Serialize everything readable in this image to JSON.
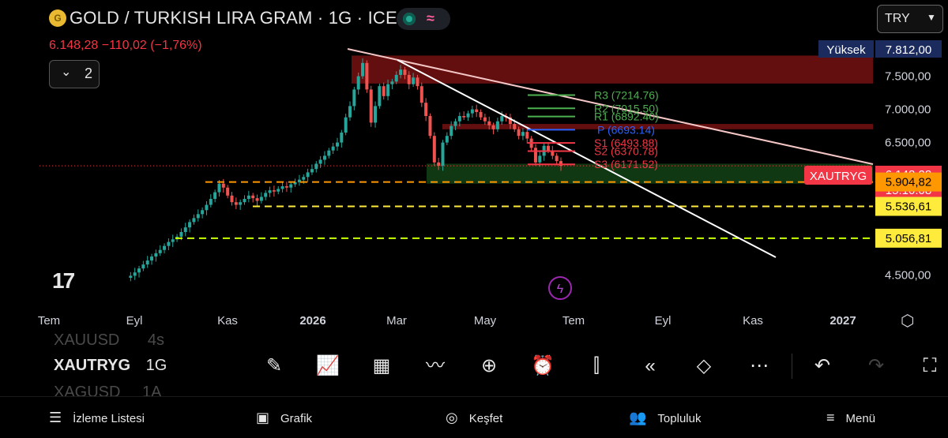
{
  "header": {
    "title": "GOLD / TURKISH LIRA GRAM · 1G · ICE",
    "price_line": "6.148,28  −110,02 (−1,76%)",
    "collapse_count": "2",
    "currency_select": "TRY",
    "logo_text": "17"
  },
  "chart_data": {
    "type": "candlestick",
    "symbol": "XAUTRYG",
    "last_price": 6148.28,
    "change": -110.02,
    "change_pct": -1.76,
    "time_labels": [
      "Tem",
      "Eyl",
      "Kas",
      "2026",
      "Mar",
      "May",
      "Tem",
      "Eyl",
      "Kas",
      "2027"
    ],
    "price_ticks": [
      "7.500,00",
      "7.000,00",
      "6.500,00",
      "4.500,00"
    ],
    "ylim": [
      4450,
      8000
    ],
    "pivots": [
      {
        "label": "R3 (7214.76)",
        "value": 7214.76,
        "color": "#4caf50"
      },
      {
        "label": "R2 (7015.50)",
        "value": 7015.5,
        "color": "#4caf50"
      },
      {
        "label": "R1 (6892.40)",
        "value": 6892.4,
        "color": "#4caf50"
      },
      {
        "label": "P (6693.14)",
        "value": 6693.14,
        "color": "#2962ff"
      },
      {
        "label": "S1 (6493.88)",
        "value": 6493.88,
        "color": "#f23645"
      },
      {
        "label": "S2 (6370.78)",
        "value": 6370.78,
        "color": "#f23645"
      },
      {
        "label": "S3 (6171.52)",
        "value": 6171.52,
        "color": "#f23645"
      }
    ],
    "price_badges": [
      {
        "label": "Yüksek",
        "value": "7.812,00",
        "bg": "#1c2b5e",
        "fg": "#ffffff"
      },
      {
        "label": "XAUTRYG",
        "value": "6.148,28",
        "sub": "15:10:08",
        "bg": "#f23645",
        "fg": "#ffffff"
      },
      {
        "value": "5.904,82",
        "bg": "#ff9800",
        "fg": "#000000"
      },
      {
        "value": "5.536,61",
        "bg": "#ffeb3b",
        "fg": "#000000"
      },
      {
        "value": "5.056,81",
        "bg": "#ffeb3b",
        "fg": "#000000"
      }
    ],
    "horizontal_levels": [
      5904.82,
      5536.61,
      5056.81
    ],
    "resistance_zones": [
      [
        7390,
        7812
      ],
      [
        6700,
        6780
      ]
    ],
    "support_zones": [
      [
        5880,
        6180
      ]
    ],
    "closes": [
      4460,
      4490,
      4540,
      4600,
      4660,
      4720,
      4780,
      4830,
      4880,
      4940,
      5000,
      5040,
      5080,
      5150,
      5220,
      5300,
      5360,
      5420,
      5480,
      5560,
      5650,
      5750,
      5880,
      5820,
      5700,
      5600,
      5560,
      5600,
      5650,
      5700,
      5660,
      5620,
      5680,
      5740,
      5780,
      5760,
      5800,
      5840,
      5820,
      5870,
      5900,
      5940,
      5980,
      6050,
      6100,
      6180,
      6240,
      6300,
      6380,
      6440,
      6500,
      6650,
      6880,
      7050,
      7300,
      7500,
      7700,
      7300,
      6800,
      7050,
      7350,
      7200,
      7380,
      7420,
      7520,
      7600,
      7520,
      7380,
      7480,
      7350,
      7100,
      6900,
      6600,
      6200,
      6150,
      6500,
      6600,
      6750,
      6820,
      6900,
      6880,
      6940,
      7000,
      6960,
      6880,
      6820,
      6760,
      6700,
      6820,
      6900,
      6880,
      6780,
      6700,
      6600,
      6660,
      6560,
      6420,
      6200,
      6300,
      6450,
      6380,
      6300,
      6220,
      6148
    ]
  },
  "watchlist": {
    "prev": "XAUUSD",
    "prev_tf": "4s",
    "current": "XAUTRYG",
    "current_tf": "1G",
    "next": "XAGUSD",
    "next_tf": "1A"
  },
  "toolbar": [
    "pen-icon",
    "indicators-icon",
    "templates-icon",
    "compare-icon",
    "add-icon",
    "alarm-icon",
    "candle-type-icon",
    "replay-icon",
    "layers-icon",
    "more-icon",
    "undo-icon",
    "redo-icon",
    "fullscreen-icon"
  ],
  "bottom_nav": [
    {
      "label": "İzleme Listesi",
      "icon": "watchlist-icon"
    },
    {
      "label": "Grafik",
      "icon": "chart-icon"
    },
    {
      "label": "Keşfet",
      "icon": "explore-icon"
    },
    {
      "label": "Topluluk",
      "icon": "community-icon"
    },
    {
      "label": "Menü",
      "icon": "menu-icon"
    }
  ]
}
